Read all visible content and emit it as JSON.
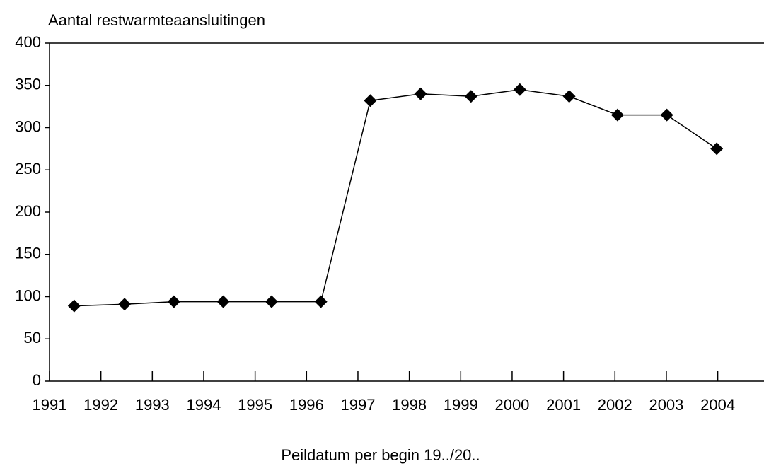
{
  "chart_data": {
    "type": "line",
    "title": "Aantal restwarmteaansluitingen",
    "x_label": "Peildatum per begin 19../20..",
    "x": [
      1991.48,
      1992.46,
      1993.42,
      1994.38,
      1995.32,
      1996.28,
      1997.24,
      1998.22,
      1999.2,
      2000.15,
      2001.11,
      2002.05,
      2003.01,
      2003.98
    ],
    "series": [
      {
        "color": "#000000",
        "values": [
          89,
          91,
          94,
          94,
          94,
          94,
          332,
          340,
          337,
          345,
          337,
          315,
          315,
          275
        ]
      }
    ],
    "xlim": [
      1991,
      2004.9
    ],
    "xticks": [
      1991,
      1992,
      1993,
      1994,
      1995,
      1996,
      1997,
      1998,
      1999,
      2000,
      2001,
      2002,
      2003,
      2004
    ],
    "ylim": [
      0,
      400
    ],
    "yticks": [
      0,
      50,
      100,
      150,
      200,
      250,
      300,
      350,
      400
    ]
  }
}
